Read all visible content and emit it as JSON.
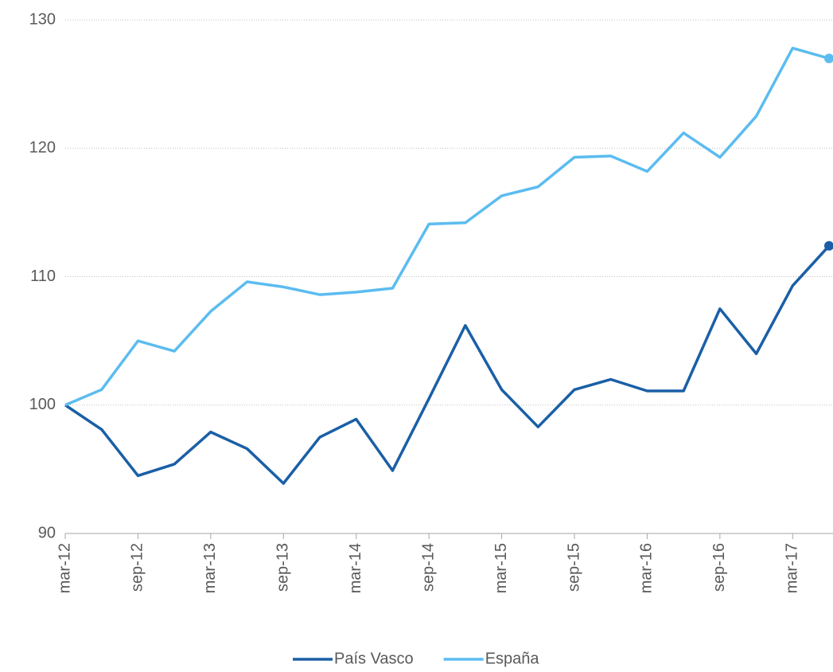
{
  "chart_data": {
    "type": "line",
    "categories": [
      "mar-12",
      null,
      "sep-12",
      null,
      "mar-13",
      null,
      "sep-13",
      null,
      "mar-14",
      null,
      "sep-14",
      null,
      "mar-15",
      null,
      "sep-15",
      null,
      "mar-16",
      null,
      "sep-16",
      null,
      "mar-17",
      null
    ],
    "series": [
      {
        "name": "País Vasco",
        "color": "#1a5fa6",
        "values": [
          100,
          98.1,
          94.5,
          95.4,
          97.9,
          96.6,
          93.9,
          97.5,
          98.9,
          94.9,
          100.5,
          106.2,
          101.2,
          98.3,
          101.2,
          102.0,
          101.1,
          101.1,
          107.5,
          104.0,
          109.3,
          112.4
        ]
      },
      {
        "name": "España",
        "color": "#5bbcf0",
        "values": [
          100,
          101.2,
          105.0,
          104.2,
          107.3,
          109.6,
          109.2,
          108.6,
          108.8,
          109.1,
          114.1,
          114.2,
          116.3,
          117.0,
          119.3,
          119.4,
          118.2,
          121.2,
          119.3,
          122.5,
          127.8,
          127.0
        ]
      }
    ],
    "ylim": [
      90,
      130
    ],
    "yticks": [
      90,
      100,
      110,
      120,
      130
    ],
    "grid": true,
    "legend": "bottom",
    "end_markers": true
  }
}
